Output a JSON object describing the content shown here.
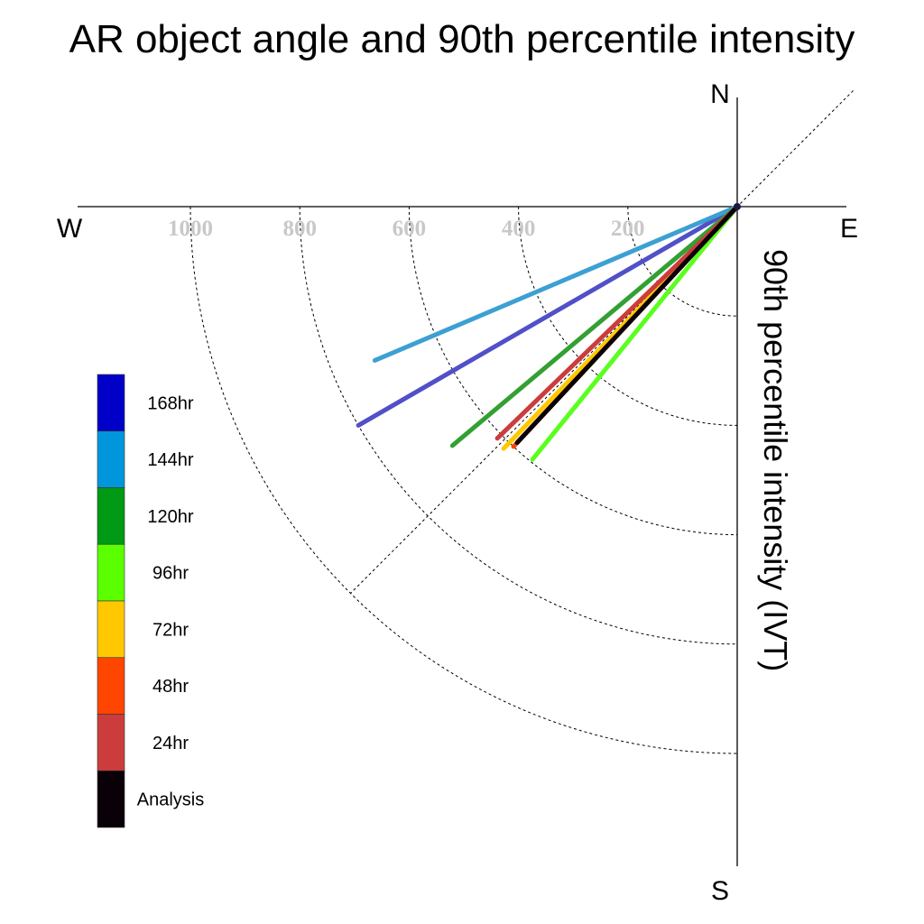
{
  "chart_data": {
    "type": "polar-vector",
    "title": "AR object angle and 90th percentile intensity",
    "ylabel": "90th percentile intensity (IVT)",
    "compass": {
      "north": "N",
      "east": "E",
      "south": "S",
      "west": "W"
    },
    "radial_ticks": [
      1000,
      800,
      600,
      400,
      200
    ],
    "radial_tick_labels": [
      "1000",
      "800",
      "600",
      "400",
      "200"
    ],
    "rlim": [
      0,
      1000
    ],
    "grid": true,
    "legend_position": "left",
    "series": [
      {
        "name": "168hr",
        "color": "#0000c8",
        "line_color": "#5050c8",
        "direction_deg": 240,
        "intensity": 800
      },
      {
        "name": "144hr",
        "color": "#0096dc",
        "line_color": "#3ca0d2",
        "direction_deg": 247,
        "intensity": 720
      },
      {
        "name": "120hr",
        "color": "#009a14",
        "line_color": "#32a032",
        "direction_deg": 230,
        "intensity": 680
      },
      {
        "name": "96hr",
        "color": "#5aff00",
        "line_color": "#5aff1e",
        "direction_deg": 219,
        "intensity": 595
      },
      {
        "name": "72hr",
        "color": "#ffc800",
        "line_color": "#ffc800",
        "direction_deg": 224,
        "intensity": 615
      },
      {
        "name": "48hr",
        "color": "#ff4600",
        "line_color": "#ff4600",
        "direction_deg": 223,
        "intensity": 600
      },
      {
        "name": "24hr",
        "color": "#cd3c3c",
        "line_color": "#cd3c3c",
        "direction_deg": 226,
        "intensity": 610
      },
      {
        "name": "Analysis",
        "color": "#0a0008",
        "line_color": "#0a0008",
        "direction_deg": 223,
        "intensity": 590
      }
    ]
  }
}
